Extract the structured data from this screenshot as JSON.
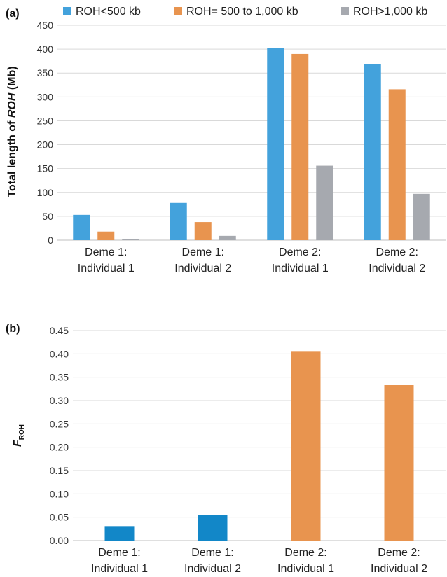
{
  "chart_data": [
    {
      "type": "bar",
      "panel_label": "(a)",
      "ylabel_parts": [
        "Total length of ",
        "ROH",
        " (Mb)"
      ],
      "categories": [
        [
          "Deme 1:",
          "Individual 1"
        ],
        [
          "Deme 1:",
          "Individual 2"
        ],
        [
          "Deme 2:",
          "Individual 1"
        ],
        [
          "Deme 2:",
          "Individual 2"
        ]
      ],
      "series": [
        {
          "name": "ROH<500 kb",
          "color": "#43A2DC",
          "values": [
            53,
            78,
            402,
            368
          ]
        },
        {
          "name": "ROH= 500 to 1,000 kb",
          "color": "#E8944F",
          "values": [
            18,
            38,
            390,
            316
          ]
        },
        {
          "name": "ROH>1,000 kb",
          "color": "#A6A9AF",
          "values": [
            2,
            9,
            156,
            97
          ]
        }
      ],
      "yticks": [
        "0",
        "50",
        "100",
        "150",
        "200",
        "250",
        "300",
        "350",
        "400",
        "450"
      ],
      "ylim": [
        0,
        450
      ],
      "grid": true,
      "legend": "top"
    },
    {
      "type": "bar",
      "panel_label": "(b)",
      "ylabel_parts": [
        "F",
        "ROH"
      ],
      "categories": [
        [
          "Deme 1:",
          "Individual 1"
        ],
        [
          "Deme 1:",
          "Individual 2"
        ],
        [
          "Deme 2:",
          "Individual 1"
        ],
        [
          "Deme 2:",
          "Individual 2"
        ]
      ],
      "values": [
        0.031,
        0.055,
        0.406,
        0.333
      ],
      "colors": [
        "#1287C8",
        "#1287C8",
        "#E8944F",
        "#E8944F"
      ],
      "yticks": [
        "0.00",
        "0.05",
        "0.10",
        "0.15",
        "0.20",
        "0.25",
        "0.30",
        "0.35",
        "0.40",
        "0.45"
      ],
      "ylim": [
        0,
        0.45
      ],
      "grid": true
    }
  ]
}
